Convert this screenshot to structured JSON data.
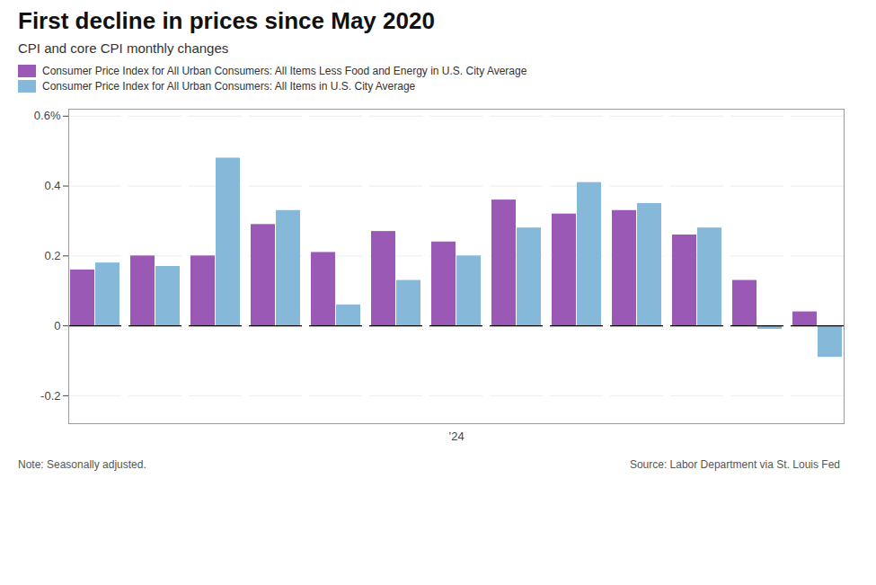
{
  "chart_data": {
    "type": "bar",
    "title": "First decline in prices since May 2020",
    "subtitle": "CPI and core CPI monthly changes",
    "note": "Note: Seasonally adjusted.",
    "source": "Source: Labor Department via St. Louis Fed",
    "categories": [
      null,
      null,
      null,
      null,
      null,
      null,
      "’24",
      null,
      null,
      null,
      null,
      null,
      null
    ],
    "series": [
      {
        "name": "Consumer Price Index for All Urban Consumers: All Items Less Food and Energy in U.S. City Average",
        "color": "#9b59b6",
        "values": [
          0.16,
          0.2,
          0.2,
          0.29,
          0.21,
          0.27,
          0.24,
          0.36,
          0.32,
          0.33,
          0.26,
          0.13,
          0.04
        ]
      },
      {
        "name": "Consumer Price Index for All Urban Consumers: All Items in U.S. City Average",
        "color": "#85b8d9",
        "values": [
          0.18,
          0.17,
          0.48,
          0.33,
          0.06,
          0.13,
          0.2,
          0.28,
          0.41,
          0.35,
          0.28,
          -0.01,
          -0.09
        ]
      }
    ],
    "ylim": [
      -0.28,
      0.62
    ],
    "yticks": [
      -0.2,
      0.0,
      0.2,
      0.4,
      {
        "value": 0.6,
        "label": "0.6%"
      }
    ],
    "grid": true,
    "legend": "top"
  }
}
